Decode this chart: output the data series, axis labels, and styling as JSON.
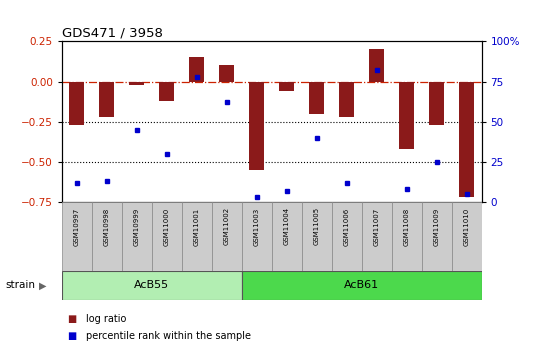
{
  "title": "GDS471 / 3958",
  "samples": [
    "GSM10997",
    "GSM10998",
    "GSM10999",
    "GSM11000",
    "GSM11001",
    "GSM11002",
    "GSM11003",
    "GSM11004",
    "GSM11005",
    "GSM11006",
    "GSM11007",
    "GSM11008",
    "GSM11009",
    "GSM11010"
  ],
  "log_ratios": [
    -0.27,
    -0.22,
    -0.02,
    -0.12,
    0.15,
    0.1,
    -0.55,
    -0.06,
    -0.2,
    -0.22,
    0.2,
    -0.42,
    -0.27,
    -0.72
  ],
  "percentile_ranks": [
    12,
    13,
    45,
    30,
    78,
    62,
    3,
    7,
    40,
    12,
    82,
    8,
    25,
    5
  ],
  "bar_color": "#8B1A1A",
  "dot_color": "#0000CC",
  "ylim_left": [
    -0.75,
    0.25
  ],
  "ylim_right": [
    0,
    100
  ],
  "yticks_left": [
    -0.75,
    -0.5,
    -0.25,
    0.0,
    0.25
  ],
  "yticks_right": [
    0,
    25,
    50,
    75,
    100
  ],
  "hline_dashed": 0.0,
  "hline_dotted1": -0.25,
  "hline_dotted2": -0.5,
  "group1_label": "AcB55",
  "group1_count": 6,
  "group2_label": "AcB61",
  "group2_count": 8,
  "strain_label": "strain",
  "legend_ratio_label": "log ratio",
  "legend_pct_label": "percentile rank within the sample",
  "group1_color": "#B2EEB2",
  "group2_color": "#4CD94C",
  "bg_color": "#FFFFFF",
  "plot_bg": "#FFFFFF",
  "tick_color_left": "#CC2200",
  "tick_color_right": "#0000CC",
  "bar_width": 0.5,
  "label_bg": "#CCCCCC",
  "figw": 5.38,
  "figh": 3.45,
  "dpi": 100
}
